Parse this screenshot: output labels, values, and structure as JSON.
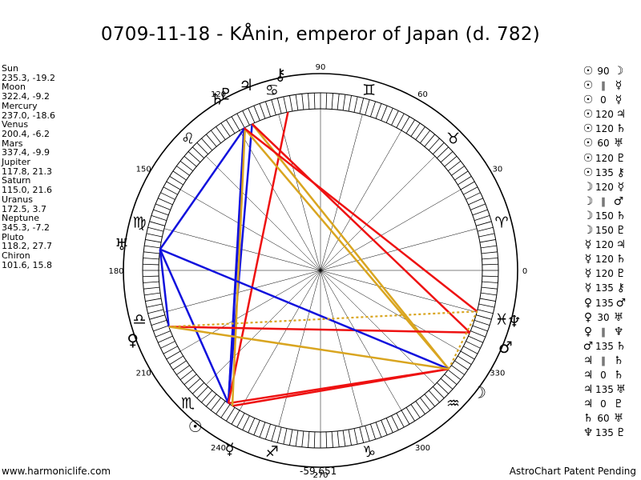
{
  "title": "0709-11-18 - KÅnin, emperor of Japan (d. 782)",
  "footer": {
    "site": "www.harmoniclife.com",
    "coords": "-59,651",
    "notice": "AstroChart Patent Pending"
  },
  "positions": [
    {
      "name": "Sun",
      "coords": "235.3, -19.2"
    },
    {
      "name": "Moon",
      "coords": "322.4, -9.2"
    },
    {
      "name": "Mercury",
      "coords": "237.0, -18.6"
    },
    {
      "name": "Venus",
      "coords": "200.4, -6.2"
    },
    {
      "name": "Mars",
      "coords": "337.4, -9.9"
    },
    {
      "name": "Jupiter",
      "coords": "117.8, 21.3"
    },
    {
      "name": "Saturn",
      "coords": "115.0, 21.6"
    },
    {
      "name": "Uranus",
      "coords": "172.5, 3.7"
    },
    {
      "name": "Neptune",
      "coords": "345.3, -7.2"
    },
    {
      "name": "Pluto",
      "coords": "118.2, 27.7"
    },
    {
      "name": "Chiron",
      "coords": "101.6, 15.8"
    }
  ],
  "aspects": [
    {
      "p1": "sun",
      "angle": "90",
      "p2": "moon"
    },
    {
      "p1": "sun",
      "angle": "par",
      "p2": "mercury"
    },
    {
      "p1": "sun",
      "angle": "0",
      "p2": "mercury"
    },
    {
      "p1": "sun",
      "angle": "120",
      "p2": "jupiter"
    },
    {
      "p1": "sun",
      "angle": "120",
      "p2": "saturn"
    },
    {
      "p1": "sun",
      "angle": "60",
      "p2": "uranus"
    },
    {
      "p1": "sun",
      "angle": "120",
      "p2": "pluto"
    },
    {
      "p1": "sun",
      "angle": "135",
      "p2": "chiron"
    },
    {
      "p1": "moon",
      "angle": "120",
      "p2": "mercury"
    },
    {
      "p1": "moon",
      "angle": "par",
      "p2": "mars"
    },
    {
      "p1": "moon",
      "angle": "150",
      "p2": "saturn"
    },
    {
      "p1": "moon",
      "angle": "150",
      "p2": "pluto"
    },
    {
      "p1": "mercury",
      "angle": "120",
      "p2": "jupiter"
    },
    {
      "p1": "mercury",
      "angle": "120",
      "p2": "saturn"
    },
    {
      "p1": "mercury",
      "angle": "120",
      "p2": "pluto"
    },
    {
      "p1": "mercury",
      "angle": "135",
      "p2": "chiron"
    },
    {
      "p1": "venus",
      "angle": "135",
      "p2": "mars"
    },
    {
      "p1": "venus",
      "angle": "30",
      "p2": "uranus"
    },
    {
      "p1": "venus",
      "angle": "par",
      "p2": "neptune"
    },
    {
      "p1": "mars",
      "angle": "135",
      "p2": "saturn"
    },
    {
      "p1": "jupiter",
      "angle": "par",
      "p2": "saturn"
    },
    {
      "p1": "jupiter",
      "angle": "0",
      "p2": "saturn"
    },
    {
      "p1": "jupiter",
      "angle": "135",
      "p2": "uranus"
    },
    {
      "p1": "jupiter",
      "angle": "0",
      "p2": "pluto"
    },
    {
      "p1": "saturn",
      "angle": "60",
      "p2": "uranus"
    },
    {
      "p1": "neptune",
      "angle": "135",
      "p2": "pluto"
    }
  ],
  "chart_data": {
    "type": "other",
    "chart_kind": "astrological natal wheel",
    "degree_labels": [
      {
        "deg": 0,
        "label": "0"
      },
      {
        "deg": 30,
        "label": "30"
      },
      {
        "deg": 60,
        "label": "60"
      },
      {
        "deg": 90,
        "label": "90"
      },
      {
        "deg": 120,
        "label": "120"
      },
      {
        "deg": 150,
        "label": "150"
      },
      {
        "deg": 180,
        "label": "180"
      },
      {
        "deg": 210,
        "label": "210"
      },
      {
        "deg": 240,
        "label": "240"
      },
      {
        "deg": 270,
        "label": "270"
      },
      {
        "deg": 300,
        "label": "300"
      },
      {
        "deg": 330,
        "label": "330"
      }
    ],
    "signs": [
      "aries",
      "taurus",
      "gemini",
      "cancer",
      "leo",
      "virgo",
      "libra",
      "scorpio",
      "sagittarius",
      "capricorn",
      "aquarius",
      "pisces"
    ],
    "planets": [
      {
        "id": "sun",
        "lon": 235.3
      },
      {
        "id": "moon",
        "lon": 322.4
      },
      {
        "id": "mercury",
        "lon": 237.0
      },
      {
        "id": "venus",
        "lon": 200.4
      },
      {
        "id": "mars",
        "lon": 337.4
      },
      {
        "id": "jupiter",
        "lon": 117.8
      },
      {
        "id": "saturn",
        "lon": 115.0
      },
      {
        "id": "uranus",
        "lon": 172.5
      },
      {
        "id": "neptune",
        "lon": 345.3
      },
      {
        "id": "pluto",
        "lon": 118.2
      },
      {
        "id": "chiron",
        "lon": 101.6
      }
    ],
    "aspect_lines": [
      {
        "from": "sun",
        "to": "moon",
        "color": "red",
        "style": "solid"
      },
      {
        "from": "sun",
        "to": "jupiter",
        "color": "blue",
        "style": "solid"
      },
      {
        "from": "sun",
        "to": "saturn",
        "color": "blue",
        "style": "solid"
      },
      {
        "from": "sun",
        "to": "uranus",
        "color": "blue",
        "style": "solid"
      },
      {
        "from": "sun",
        "to": "pluto",
        "color": "blue",
        "style": "solid"
      },
      {
        "from": "sun",
        "to": "chiron",
        "color": "red",
        "style": "solid"
      },
      {
        "from": "moon",
        "to": "mercury",
        "color": "red",
        "style": "solid"
      },
      {
        "from": "moon",
        "to": "saturn",
        "color": "gold",
        "style": "solid"
      },
      {
        "from": "moon",
        "to": "pluto",
        "color": "gold",
        "style": "solid"
      },
      {
        "from": "mercury",
        "to": "jupiter",
        "color": "gold",
        "style": "solid"
      },
      {
        "from": "venus",
        "to": "mars",
        "color": "red",
        "style": "solid"
      },
      {
        "from": "venus",
        "to": "uranus",
        "color": "blue",
        "style": "solid"
      },
      {
        "from": "mars",
        "to": "saturn",
        "color": "red",
        "style": "solid"
      },
      {
        "from": "jupiter",
        "to": "uranus",
        "color": "blue",
        "style": "solid"
      },
      {
        "from": "moon",
        "to": "uranus",
        "color": "blue",
        "style": "solid"
      },
      {
        "from": "venus",
        "to": "moon",
        "color": "gold",
        "style": "solid"
      },
      {
        "from": "neptune",
        "to": "pluto",
        "color": "red",
        "style": "solid"
      },
      {
        "from": "venus",
        "to": "neptune",
        "color": "gold",
        "style": "dotted"
      },
      {
        "from": "moon",
        "to": "neptune",
        "color": "gold",
        "style": "dotted"
      }
    ],
    "colors": {
      "red": "#ee1111",
      "blue": "#1111dd",
      "gold": "#d9a520"
    }
  }
}
